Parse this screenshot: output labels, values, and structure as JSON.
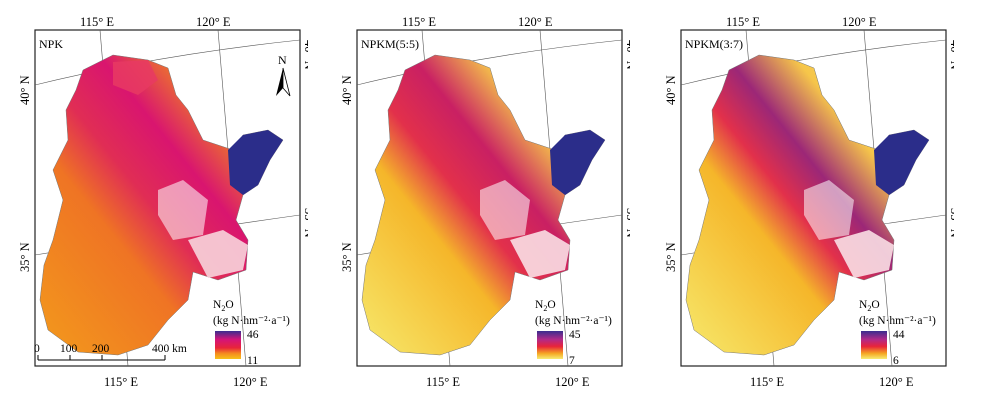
{
  "maps": [
    {
      "id": "npk",
      "label": "NPK",
      "legend_title": "N2O",
      "legend_unit": "(kg N·hm⁻²·a⁻¹)",
      "max": "46",
      "min": "11",
      "colors": [
        "#3a2d8f",
        "#d4147a",
        "#e8243a",
        "#f58a1f",
        "#f7c21a"
      ]
    },
    {
      "id": "npkm55",
      "label": "NPKM(5:5)",
      "legend_title": "N2O",
      "legend_unit": "(kg N·hm⁻²·a⁻¹)",
      "max": "45",
      "min": "7",
      "colors": [
        "#3a2d8f",
        "#b02a8a",
        "#e8243a",
        "#f5a623",
        "#f7ec73"
      ]
    },
    {
      "id": "npkm37",
      "label": "NPKM(3:7)",
      "legend_title": "N2O",
      "legend_unit": "(kg N·hm⁻²·a⁻¹)",
      "max": "44",
      "min": "6",
      "colors": [
        "#3a2d8f",
        "#b02a8a",
        "#e8243a",
        "#f5a623",
        "#f7ec73"
      ]
    }
  ],
  "coords": {
    "lon_115": "115° E",
    "lon_120": "120° E",
    "lat_40": "40° N",
    "lat_35": "35° N"
  },
  "north_arrow": "N",
  "scale_bar": {
    "ticks": [
      "0",
      "100",
      "200",
      "400 km"
    ]
  }
}
